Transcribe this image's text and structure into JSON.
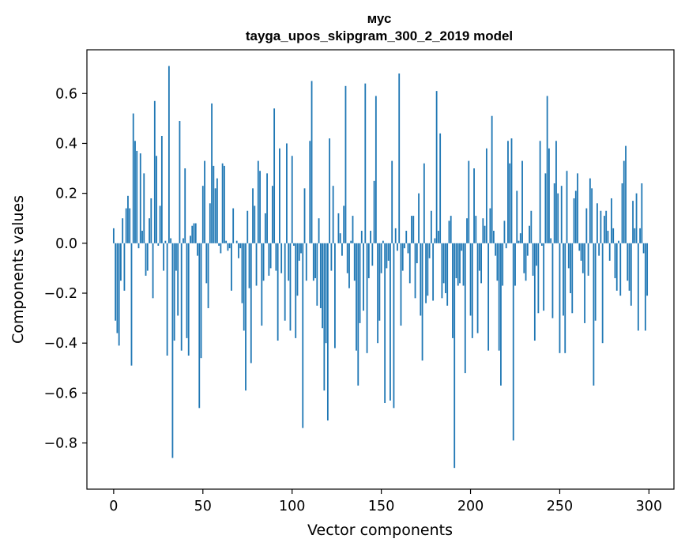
{
  "chart_data": {
    "type": "bar",
    "title": "мус",
    "subtitle": "tayga_upos_skipgram_300_2_2019 model",
    "xlabel": "Vector components",
    "ylabel": "Components values",
    "xlim": [
      -15,
      314
    ],
    "ylim": [
      -0.985,
      0.775
    ],
    "xticks": [
      0,
      50,
      100,
      150,
      200,
      250,
      300
    ],
    "yticks": [
      -0.8,
      -0.6,
      -0.4,
      -0.2,
      0.0,
      0.2,
      0.4,
      0.6
    ],
    "ytick_labels": [
      "−0.8",
      "−0.6",
      "−0.4",
      "−0.2",
      "0.0",
      "0.2",
      "0.4",
      "0.6"
    ],
    "bar_color": "#1f77b4",
    "grid": false,
    "values": [
      0.06,
      -0.31,
      -0.36,
      -0.41,
      -0.15,
      0.1,
      -0.19,
      0.14,
      0.19,
      0.14,
      -0.49,
      0.52,
      0.41,
      0.37,
      -0.02,
      0.36,
      0.05,
      0.28,
      -0.13,
      -0.11,
      0.1,
      0.18,
      -0.22,
      0.57,
      0.35,
      -0.01,
      0.15,
      0.43,
      -0.11,
      0.01,
      -0.45,
      0.71,
      0.02,
      -0.86,
      -0.39,
      -0.11,
      -0.29,
      0.49,
      -0.43,
      0.02,
      0.3,
      -0.38,
      -0.45,
      0.03,
      0.07,
      0.08,
      0.08,
      -0.05,
      -0.66,
      -0.46,
      0.23,
      0.33,
      -0.16,
      -0.26,
      0.16,
      0.56,
      0.31,
      0.22,
      0.26,
      -0.01,
      -0.04,
      0.32,
      0.31,
      0.01,
      -0.03,
      -0.02,
      -0.19,
      0.14,
      0.0,
      0.01,
      -0.06,
      -0.02,
      -0.24,
      -0.35,
      -0.59,
      0.13,
      -0.18,
      -0.48,
      0.22,
      0.15,
      -0.17,
      0.33,
      0.29,
      -0.33,
      -0.15,
      0.12,
      0.28,
      -0.13,
      -0.1,
      0.23,
      0.54,
      -0.11,
      -0.39,
      0.38,
      -0.12,
      0.0,
      -0.31,
      0.4,
      -0.15,
      -0.35,
      0.35,
      -0.01,
      -0.38,
      -0.21,
      -0.07,
      -0.04,
      -0.74,
      0.22,
      -0.15,
      0.0,
      0.41,
      0.65,
      -0.15,
      -0.14,
      -0.25,
      0.1,
      -0.26,
      -0.34,
      -0.59,
      -0.4,
      -0.71,
      0.42,
      -0.11,
      0.23,
      -0.42,
      0.0,
      0.12,
      0.04,
      -0.05,
      0.15,
      0.63,
      -0.12,
      -0.18,
      0.01,
      0.11,
      -0.15,
      -0.43,
      -0.57,
      -0.32,
      0.05,
      -0.27,
      0.64,
      -0.44,
      -0.14,
      0.05,
      -0.09,
      0.25,
      0.59,
      -0.4,
      -0.31,
      -0.12,
      0.01,
      -0.64,
      -0.1,
      -0.07,
      -0.63,
      0.33,
      -0.66,
      0.06,
      -0.03,
      0.68,
      -0.33,
      -0.11,
      -0.02,
      0.05,
      -0.04,
      -0.16,
      0.11,
      0.11,
      -0.22,
      -0.08,
      0.2,
      -0.29,
      -0.47,
      0.32,
      -0.24,
      -0.21,
      -0.06,
      0.13,
      -0.23,
      0.02,
      0.61,
      0.05,
      0.44,
      -0.22,
      -0.16,
      -0.2,
      -0.25,
      0.09,
      0.11,
      -0.38,
      -0.9,
      -0.14,
      -0.17,
      -0.16,
      -0.03,
      -0.17,
      -0.52,
      0.1,
      0.33,
      -0.29,
      -0.38,
      0.3,
      0.11,
      -0.36,
      -0.11,
      -0.16,
      0.1,
      0.07,
      0.38,
      -0.43,
      0.14,
      0.51,
      0.05,
      -0.05,
      -0.15,
      -0.43,
      -0.57,
      -0.17,
      0.09,
      -0.02,
      0.41,
      0.32,
      0.42,
      -0.79,
      -0.17,
      0.21,
      0.01,
      0.04,
      0.33,
      -0.12,
      -0.15,
      -0.05,
      0.07,
      0.13,
      -0.13,
      -0.39,
      -0.09,
      -0.28,
      0.41,
      -0.01,
      -0.27,
      0.28,
      0.59,
      0.38,
      0.02,
      -0.3,
      0.24,
      0.41,
      0.2,
      -0.44,
      0.23,
      -0.29,
      -0.44,
      0.29,
      -0.1,
      -0.2,
      -0.28,
      0.18,
      0.21,
      0.28,
      -0.03,
      -0.07,
      -0.12,
      -0.32,
      0.14,
      -0.13,
      0.26,
      0.22,
      -0.57,
      -0.31,
      0.16,
      -0.05,
      0.13,
      -0.4,
      0.11,
      0.13,
      0.05,
      -0.07,
      0.18,
      0.06,
      -0.14,
      -0.19,
      0.01,
      -0.21,
      0.24,
      0.33,
      0.39,
      -0.15,
      -0.19,
      -0.25,
      0.17,
      0.06,
      0.2,
      -0.35,
      0.06,
      0.24,
      -0.04,
      -0.35,
      -0.21
    ]
  }
}
